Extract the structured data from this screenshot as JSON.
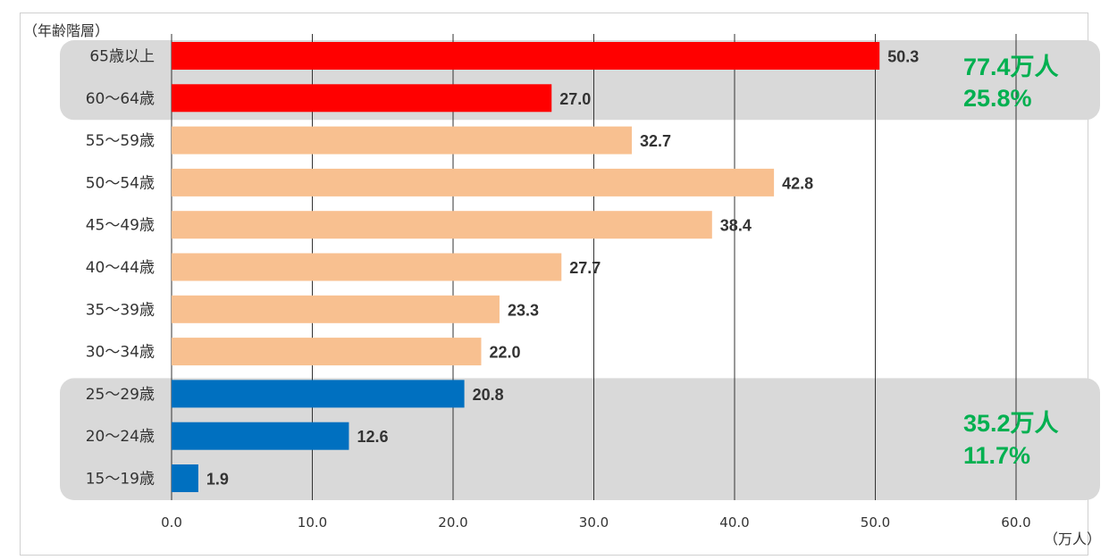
{
  "chart_data": {
    "type": "bar",
    "orientation": "horizontal",
    "ylabel": "（年齢階層）",
    "xlabel": "（万人）",
    "xlim": [
      0,
      60
    ],
    "xticks": [
      "0.0",
      "10.0",
      "20.0",
      "30.0",
      "40.0",
      "50.0",
      "60.0"
    ],
    "grid": true,
    "categories": [
      "65歳以上",
      "60〜64歳",
      "55〜59歳",
      "50〜54歳",
      "45〜49歳",
      "40〜44歳",
      "35〜39歳",
      "30〜34歳",
      "25〜29歳",
      "20〜24歳",
      "15〜19歳"
    ],
    "values": [
      50.3,
      27.0,
      32.7,
      42.8,
      38.4,
      27.7,
      23.3,
      22.0,
      20.8,
      12.6,
      1.9
    ],
    "value_labels": [
      "50.3",
      "27.0",
      "32.7",
      "42.8",
      "38.4",
      "27.7",
      "23.3",
      "22.0",
      "20.8",
      "12.6",
      "1.9"
    ],
    "groups": [
      {
        "name": "senior",
        "categories": [
          "65歳以上",
          "60〜64歳"
        ],
        "color": "#ff0000",
        "total_label": "77.4万人",
        "share_label": "25.8%"
      },
      {
        "name": "middle",
        "categories": [
          "55〜59歳",
          "50〜54歳",
          "45〜49歳",
          "40〜44歳",
          "35〜39歳",
          "30〜34歳"
        ],
        "color": "#f8c090"
      },
      {
        "name": "young",
        "categories": [
          "25〜29歳",
          "20〜24歳",
          "15〜19歳"
        ],
        "color": "#0070c0",
        "total_label": "35.2万人",
        "share_label": "11.7%"
      }
    ],
    "bar_colors": [
      "#ff0000",
      "#ff0000",
      "#f8c090",
      "#f8c090",
      "#f8c090",
      "#f8c090",
      "#f8c090",
      "#f8c090",
      "#0070c0",
      "#0070c0",
      "#0070c0"
    ],
    "highlight_color": "#d9d9d9",
    "note_color": "#00b050",
    "grid_color": "#333333",
    "text_color": "#333333"
  }
}
